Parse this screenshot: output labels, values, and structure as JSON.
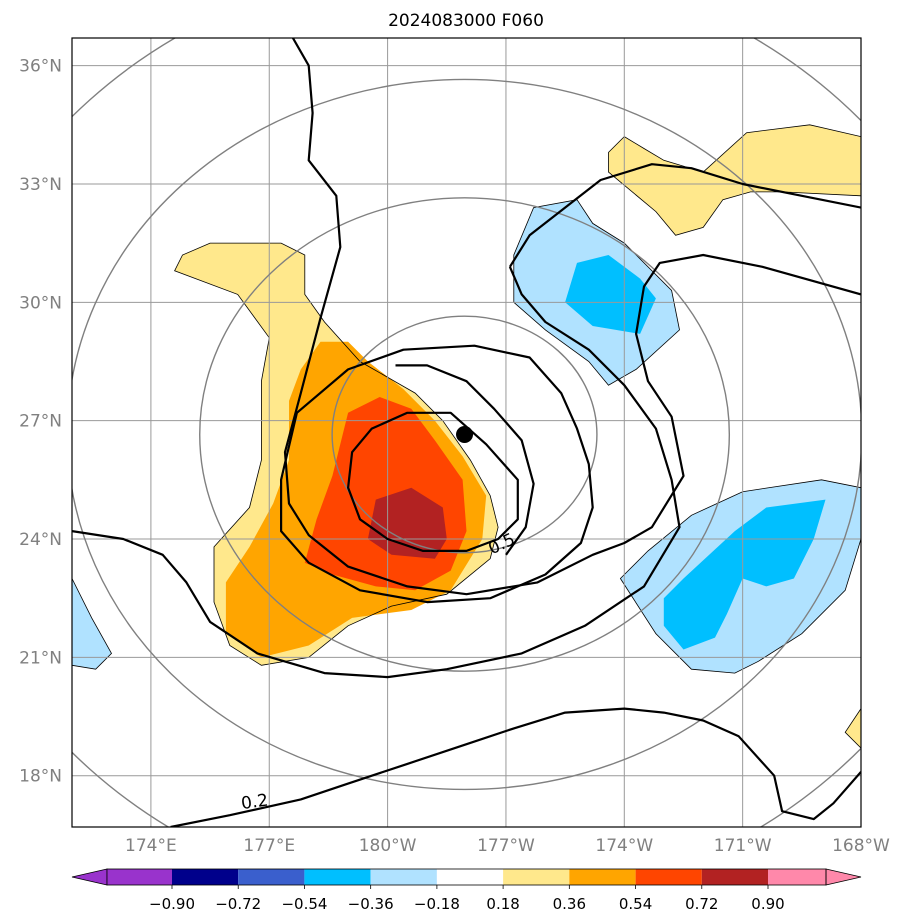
{
  "chart_data": {
    "type": "heatmap",
    "title": "2024083000 F060",
    "map": {
      "lon_min": 172.0,
      "lon_max": 192.0,
      "lat_min": 16.7,
      "lat_max": 36.7,
      "grid": true
    },
    "x_ticks": [
      {
        "value": 174,
        "label": "174°E"
      },
      {
        "value": 177,
        "label": "177°E"
      },
      {
        "value": 180,
        "label": "180°W"
      },
      {
        "value": 183,
        "label": "177°W"
      },
      {
        "value": 186,
        "label": "174°W"
      },
      {
        "value": 189,
        "label": "171°W"
      },
      {
        "value": 192,
        "label": "168°W"
      }
    ],
    "y_ticks": [
      {
        "value": 18,
        "label": "18°N"
      },
      {
        "value": 21,
        "label": "21°N"
      },
      {
        "value": 24,
        "label": "24°N"
      },
      {
        "value": 27,
        "label": "27°N"
      },
      {
        "value": 30,
        "label": "30°N"
      },
      {
        "value": 33,
        "label": "33°N"
      },
      {
        "value": 36,
        "label": "36°N"
      }
    ],
    "colorbar": {
      "boundaries": [
        "−0.90",
        "−0.72",
        "−0.54",
        "−0.36",
        "−0.18",
        "0.18",
        "0.36",
        "0.54",
        "0.72",
        "0.90"
      ],
      "colors": [
        "#9933cc",
        "#00008b",
        "#3a5fcd",
        "#00bfff",
        "#b0e2ff",
        "#ffffff",
        "#ffe88c",
        "#ffa500",
        "#ff4500",
        "#b22222",
        "#ff88aa"
      ],
      "extend": "both"
    },
    "center": {
      "lon": 181.95,
      "lat": 26.65
    },
    "range_rings_deg": [
      3,
      6,
      9,
      12
    ],
    "contour_labels": [
      {
        "text": "0.5",
        "lon": 182.95,
        "lat": 23.75
      },
      {
        "text": "0.2",
        "lon": 176.65,
        "lat": 17.2
      }
    ],
    "shaded_regions": [
      {
        "level": 0.18,
        "color": "#ffe88c",
        "points": [
          [
            174.6,
            30.8
          ],
          [
            174.8,
            31.2
          ],
          [
            175.5,
            31.5
          ],
          [
            177.3,
            31.5
          ],
          [
            177.9,
            31.2
          ],
          [
            177.9,
            30.2
          ],
          [
            178.4,
            29.5
          ],
          [
            179.3,
            28.5
          ],
          [
            180.7,
            27.7
          ],
          [
            181.4,
            27.0
          ],
          [
            182.1,
            26.0
          ],
          [
            182.6,
            25.1
          ],
          [
            182.8,
            24.3
          ],
          [
            182.6,
            23.5
          ],
          [
            181.5,
            22.6
          ],
          [
            180.1,
            22.3
          ],
          [
            179.0,
            21.8
          ],
          [
            178.0,
            21.0
          ],
          [
            176.8,
            20.8
          ],
          [
            176.0,
            21.3
          ],
          [
            175.6,
            22.4
          ],
          [
            175.6,
            23.8
          ],
          [
            176.5,
            24.8
          ],
          [
            176.8,
            26.0
          ],
          [
            176.8,
            28.0
          ],
          [
            177.0,
            29.1
          ],
          [
            176.2,
            30.2
          ]
        ]
      },
      {
        "level": 0.36,
        "color": "#ffa500",
        "points": [
          [
            177.8,
            28.3
          ],
          [
            178.3,
            29.0
          ],
          [
            179.0,
            29.0
          ],
          [
            179.5,
            28.5
          ],
          [
            180.4,
            27.8
          ],
          [
            181.2,
            27.0
          ],
          [
            181.9,
            26.1
          ],
          [
            182.5,
            25.1
          ],
          [
            182.4,
            24.0
          ],
          [
            181.6,
            22.7
          ],
          [
            180.6,
            22.2
          ],
          [
            179.1,
            22.0
          ],
          [
            178.0,
            21.3
          ],
          [
            176.8,
            21.0
          ],
          [
            175.9,
            21.6
          ],
          [
            175.9,
            22.9
          ],
          [
            176.5,
            23.8
          ],
          [
            177.1,
            24.9
          ],
          [
            177.5,
            26.0
          ],
          [
            177.5,
            27.5
          ]
        ]
      },
      {
        "level": 0.54,
        "color": "#ff4500",
        "points": [
          [
            179.0,
            27.2
          ],
          [
            179.8,
            27.6
          ],
          [
            180.6,
            27.3
          ],
          [
            181.2,
            26.5
          ],
          [
            181.9,
            25.5
          ],
          [
            182.0,
            24.2
          ],
          [
            181.6,
            23.2
          ],
          [
            180.7,
            22.7
          ],
          [
            179.7,
            22.8
          ],
          [
            178.6,
            23.1
          ],
          [
            177.9,
            23.4
          ],
          [
            178.2,
            24.5
          ],
          [
            178.6,
            25.6
          ]
        ]
      },
      {
        "level": 0.72,
        "color": "#b22222",
        "points": [
          [
            179.7,
            25.0
          ],
          [
            180.6,
            25.3
          ],
          [
            181.4,
            24.8
          ],
          [
            181.5,
            24.0
          ],
          [
            181.2,
            23.5
          ],
          [
            180.1,
            23.6
          ],
          [
            179.5,
            24.0
          ]
        ]
      },
      {
        "level": -0.18,
        "color": "#b0e2ff",
        "points": [
          [
            183.2,
            30.0
          ],
          [
            183.2,
            31.2
          ],
          [
            183.7,
            32.4
          ],
          [
            184.8,
            32.6
          ],
          [
            185.2,
            32.0
          ],
          [
            186.0,
            31.5
          ],
          [
            187.2,
            30.3
          ],
          [
            187.4,
            29.3
          ],
          [
            186.3,
            28.3
          ],
          [
            185.6,
            27.9
          ],
          [
            185.1,
            28.5
          ],
          [
            184.0,
            29.3
          ]
        ]
      },
      {
        "level": -0.36,
        "color": "#00bfff",
        "points": [
          [
            184.5,
            30.0
          ],
          [
            184.8,
            31.0
          ],
          [
            185.6,
            31.2
          ],
          [
            186.4,
            30.6
          ],
          [
            186.8,
            30.1
          ],
          [
            186.4,
            29.2
          ],
          [
            185.2,
            29.4
          ]
        ]
      },
      {
        "level": -0.18,
        "color": "#b0e2ff",
        "points": [
          [
            185.9,
            23.0
          ],
          [
            186.6,
            23.7
          ],
          [
            187.7,
            24.6
          ],
          [
            189.0,
            25.2
          ],
          [
            191.0,
            25.5
          ],
          [
            192.0,
            25.3
          ],
          [
            192.0,
            24.0
          ],
          [
            191.6,
            22.7
          ],
          [
            190.5,
            21.6
          ],
          [
            189.4,
            20.9
          ],
          [
            188.8,
            20.6
          ],
          [
            187.7,
            20.7
          ],
          [
            186.8,
            21.6
          ]
        ]
      },
      {
        "level": -0.36,
        "color": "#00bfff",
        "points": [
          [
            187.0,
            22.5
          ],
          [
            187.5,
            23.0
          ],
          [
            188.8,
            24.2
          ],
          [
            189.6,
            24.8
          ],
          [
            191.1,
            25.0
          ],
          [
            190.8,
            24.0
          ],
          [
            190.3,
            23.0
          ],
          [
            189.6,
            22.8
          ],
          [
            189.0,
            23.0
          ],
          [
            188.6,
            22.1
          ],
          [
            188.3,
            21.5
          ],
          [
            187.5,
            21.2
          ],
          [
            187.0,
            21.8
          ]
        ]
      },
      {
        "level": 0.18,
        "color": "#ffe88c",
        "points": [
          [
            185.6,
            33.3
          ],
          [
            185.6,
            33.8
          ],
          [
            186.0,
            34.2
          ],
          [
            186.5,
            33.9
          ],
          [
            187.0,
            33.6
          ],
          [
            188.0,
            33.3
          ],
          [
            189.1,
            34.3
          ],
          [
            190.7,
            34.5
          ],
          [
            192.0,
            34.2
          ],
          [
            192.0,
            32.7
          ],
          [
            190.0,
            32.8
          ],
          [
            189.2,
            32.8
          ],
          [
            188.5,
            32.6
          ],
          [
            188.0,
            31.9
          ],
          [
            187.3,
            31.7
          ],
          [
            186.8,
            32.3
          ]
        ]
      },
      {
        "level": -0.18,
        "color": "#b0e2ff",
        "points": [
          [
            172.0,
            23.0
          ],
          [
            172.5,
            22.0
          ],
          [
            173.0,
            21.1
          ],
          [
            172.6,
            20.7
          ],
          [
            172.0,
            20.8
          ]
        ]
      },
      {
        "level": 0.18,
        "color": "#ffe88c",
        "points": [
          [
            192.0,
            19.7
          ],
          [
            191.6,
            19.1
          ],
          [
            192.0,
            18.7
          ]
        ]
      }
    ],
    "shaded_outline_color": "#000000",
    "contour_color": "#000000",
    "ring_color": "#808080"
  }
}
